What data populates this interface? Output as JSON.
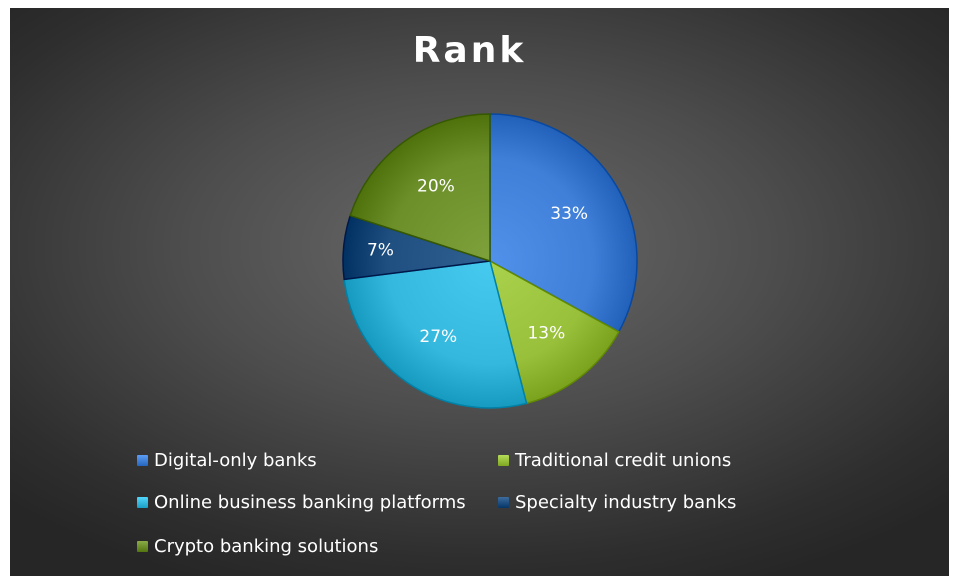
{
  "chart_data": {
    "type": "pie",
    "title": "Rank",
    "categories": [
      "Digital-only banks",
      "Traditional credit unions",
      "Online business banking platforms",
      "Specialty industry banks",
      "Crypto banking solutions"
    ],
    "values": [
      33,
      13,
      27,
      7,
      20
    ],
    "data_labels": [
      "33%",
      "13%",
      "27%",
      "7%",
      "20%"
    ],
    "colors": [
      "#3f7fd8",
      "#98c03a",
      "#34b8de",
      "#1f4f80",
      "#6c8f2a"
    ],
    "legend_position": "bottom"
  }
}
